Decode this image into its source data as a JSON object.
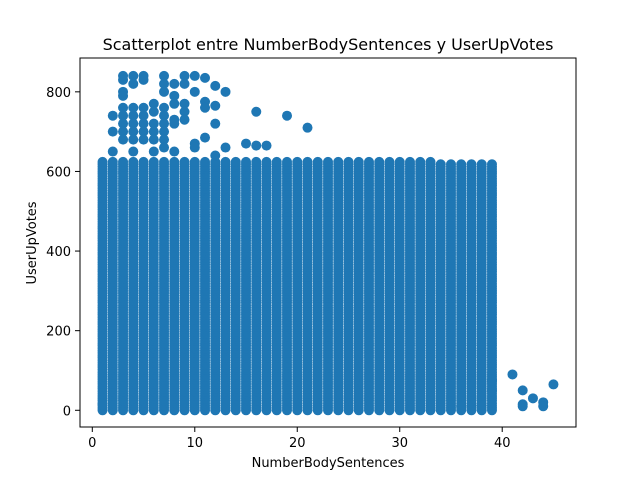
{
  "chart_data": {
    "type": "scatter",
    "title": "Scatterplot entre NumberBodySentences y UserUpVotes",
    "xlabel": "NumberBodySentences",
    "ylabel": "UserUpVotes",
    "xlim": [
      -1.2,
      47.2
    ],
    "ylim": [
      -42,
      885
    ],
    "x_ticks": [
      0,
      10,
      20,
      30,
      40
    ],
    "y_ticks": [
      0,
      200,
      400,
      600,
      800
    ],
    "grid": false,
    "legend": "none",
    "marker_color": "#1f77b4",
    "series": [
      {
        "dense_region": {
          "x_range": [
            1,
            39
          ],
          "y_range": [
            0,
            625
          ]
        },
        "points": [
          [
            1,
            15
          ],
          [
            2,
            740
          ],
          [
            2,
            700
          ],
          [
            2,
            650
          ],
          [
            3,
            840
          ],
          [
            3,
            830
          ],
          [
            3,
            800
          ],
          [
            3,
            790
          ],
          [
            3,
            760
          ],
          [
            3,
            740
          ],
          [
            3,
            720
          ],
          [
            3,
            700
          ],
          [
            3,
            680
          ],
          [
            4,
            840
          ],
          [
            4,
            820
          ],
          [
            4,
            760
          ],
          [
            4,
            740
          ],
          [
            4,
            720
          ],
          [
            4,
            700
          ],
          [
            4,
            680
          ],
          [
            4,
            650
          ],
          [
            5,
            840
          ],
          [
            5,
            830
          ],
          [
            5,
            760
          ],
          [
            5,
            740
          ],
          [
            5,
            720
          ],
          [
            5,
            700
          ],
          [
            5,
            680
          ],
          [
            6,
            770
          ],
          [
            6,
            750
          ],
          [
            6,
            720
          ],
          [
            6,
            700
          ],
          [
            6,
            680
          ],
          [
            6,
            650
          ],
          [
            7,
            840
          ],
          [
            7,
            820
          ],
          [
            7,
            800
          ],
          [
            7,
            760
          ],
          [
            7,
            740
          ],
          [
            7,
            720
          ],
          [
            7,
            700
          ],
          [
            7,
            680
          ],
          [
            7,
            660
          ],
          [
            8,
            820
          ],
          [
            8,
            790
          ],
          [
            8,
            770
          ],
          [
            8,
            730
          ],
          [
            8,
            720
          ],
          [
            8,
            650
          ],
          [
            9,
            840
          ],
          [
            9,
            820
          ],
          [
            9,
            770
          ],
          [
            9,
            750
          ],
          [
            9,
            730
          ],
          [
            10,
            840
          ],
          [
            10,
            800
          ],
          [
            10,
            670
          ],
          [
            10,
            660
          ],
          [
            11,
            835
          ],
          [
            11,
            775
          ],
          [
            11,
            760
          ],
          [
            11,
            685
          ],
          [
            12,
            815
          ],
          [
            12,
            765
          ],
          [
            12,
            720
          ],
          [
            12,
            640
          ],
          [
            13,
            800
          ],
          [
            13,
            660
          ],
          [
            15,
            670
          ],
          [
            16,
            750
          ],
          [
            16,
            665
          ],
          [
            17,
            665
          ],
          [
            19,
            740
          ],
          [
            21,
            710
          ],
          [
            36,
            10
          ],
          [
            38,
            12
          ],
          [
            39,
            75
          ],
          [
            39,
            50
          ],
          [
            41,
            90
          ],
          [
            42,
            50
          ],
          [
            42,
            15
          ],
          [
            42,
            10
          ],
          [
            43,
            30
          ],
          [
            44,
            20
          ],
          [
            44,
            10
          ],
          [
            45,
            65
          ]
        ]
      }
    ]
  }
}
